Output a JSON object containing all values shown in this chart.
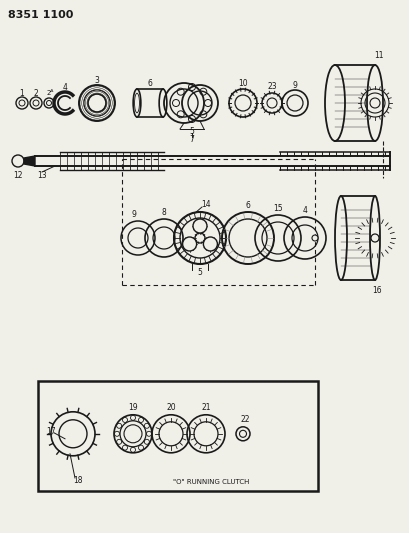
{
  "bg_color": "#f0efe8",
  "line_color": "#1a1a1a",
  "part_number": "8351 1100",
  "part_number_fontsize": 8,
  "clutch_label": "\"O\" RUNNING CLUTCH",
  "clutch_label_fontsize": 5.0,
  "figsize": [
    4.1,
    5.33
  ],
  "dpi": 100
}
